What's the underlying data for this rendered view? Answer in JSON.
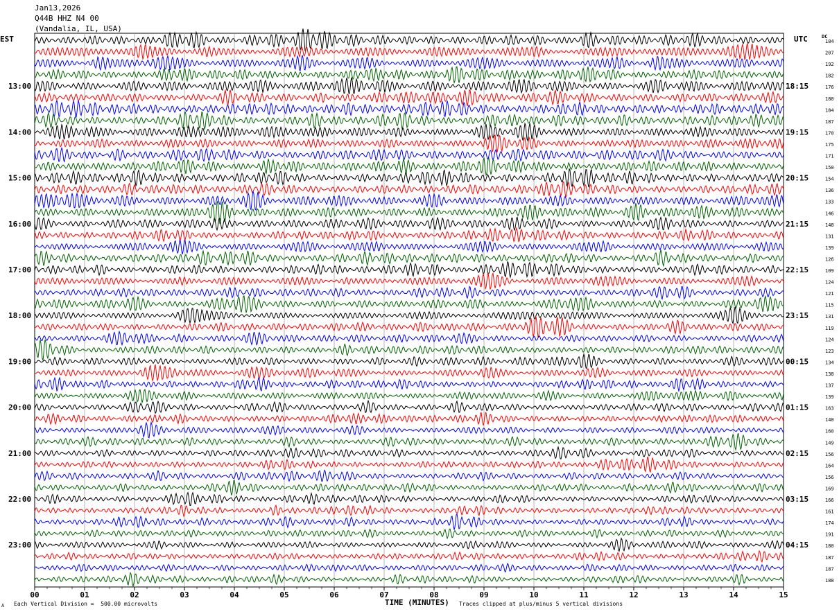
{
  "header": {
    "date": "Jan13,2026",
    "station": "Q44B HHZ N4 00",
    "location": "(Vandalia, IL, USA)"
  },
  "left_tz": "EST",
  "right_tz": "UTC",
  "dc_label": "DC",
  "footer": {
    "scale_note": "Each Vertical Division =  500.00 microvolts",
    "clip_note": "Traces clipped at plus/minus 5 vertical divisions",
    "corner_mark": "A"
  },
  "chart_data": {
    "type": "line",
    "title": "Jan13,2026 Q44B HHZ N4 00 (Vandalia, IL, USA)",
    "xlabel": "TIME (MINUTES)",
    "ylabel": "",
    "x_ticks": [
      "00",
      "01",
      "02",
      "03",
      "04",
      "05",
      "06",
      "07",
      "08",
      "09",
      "10",
      "11",
      "12",
      "13",
      "14",
      "15"
    ],
    "xlim": [
      0,
      15
    ],
    "grid": "vertical lines each minute",
    "trace_colors": [
      "#000000",
      "#ff0000",
      "#0000ff",
      "#006400"
    ],
    "left_hour_labels": [
      "13:00",
      "14:00",
      "15:00",
      "16:00",
      "17:00",
      "18:00",
      "19:00",
      "20:00",
      "21:00",
      "22:00",
      "23:00"
    ],
    "right_hour_labels": [
      "18:15",
      "19:15",
      "20:15",
      "21:15",
      "22:15",
      "23:15",
      "00:15",
      "01:15",
      "02:15",
      "03:15",
      "04:15"
    ],
    "hour_label_first_row": 4,
    "rows_per_hour": 4,
    "row_dc_values": [
      "184",
      "207",
      "192",
      "182",
      "176",
      "180",
      "184",
      "187",
      "170",
      "175",
      "171",
      "150",
      "154",
      "136",
      "133",
      "146",
      "148",
      "131",
      "139",
      "126",
      "109",
      "124",
      "121",
      "115",
      "131",
      "119",
      "124",
      "123",
      "134",
      "138",
      "137",
      "139",
      "163",
      "140",
      "160",
      "149",
      "156",
      "164",
      "156",
      "169",
      "166",
      "161",
      "174",
      "191",
      "180",
      "187",
      "187",
      "188"
    ],
    "row_amplitude_divisions": [
      0.45,
      0.45,
      0.48,
      0.42,
      0.45,
      0.44,
      0.5,
      0.44,
      0.45,
      0.4,
      0.4,
      0.45,
      0.42,
      0.42,
      0.45,
      0.42,
      0.4,
      0.38,
      0.36,
      0.38,
      0.38,
      0.36,
      0.36,
      0.38,
      0.36,
      0.36,
      0.34,
      0.34,
      0.34,
      0.33,
      0.33,
      0.32,
      0.32,
      0.32,
      0.3,
      0.3,
      0.3,
      0.3,
      0.3,
      0.3,
      0.3,
      0.3,
      0.3,
      0.28,
      0.28,
      0.28,
      0.28,
      0.26
    ],
    "amplitude_unit": "vertical divisions (500 microvolts each)"
  }
}
